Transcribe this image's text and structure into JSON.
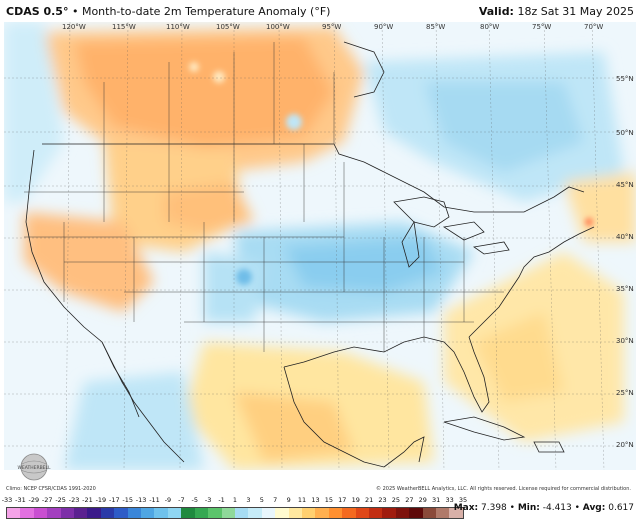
{
  "header": {
    "model": "CDAS 0.5°",
    "separator": " • ",
    "product": "Month-to-date 2m Temperature Anomaly (°F)",
    "valid_label": "Valid:",
    "valid_time": "18z Sat 31 May 2025"
  },
  "map": {
    "lon_labels": [
      "120°W",
      "115°W",
      "110°W",
      "105°W",
      "100°W",
      "95°W",
      "90°W",
      "85°W",
      "80°W",
      "75°W",
      "70°W"
    ],
    "lat_labels": [
      "55°N",
      "50°N",
      "45°N",
      "40°N",
      "35°N",
      "30°N",
      "25°N",
      "20°N"
    ]
  },
  "footer": {
    "climo": "Climo: NCEP CFSR/CDAS 1991-2020",
    "copyright": "© 2025 WeatherBELL Analytics, LLC. All rights reserved. License required for commercial distribution.",
    "logo_text": "WEATHERBELL",
    "max_label": "Max:",
    "max_value": "7.398",
    "min_label": "Min:",
    "min_value": "-4.413",
    "avg_label": "Avg:",
    "avg_value": "0.617",
    "sep": " • "
  },
  "colorbar": {
    "ticks": [
      "-33",
      "-31",
      "-29",
      "-27",
      "-25",
      "-23",
      "-21",
      "-19",
      "-17",
      "-15",
      "-13",
      "-11",
      "-9",
      "-7",
      "-5",
      "-3",
      "-1",
      "1",
      "3",
      "5",
      "7",
      "9",
      "11",
      "13",
      "15",
      "17",
      "19",
      "21",
      "23",
      "25",
      "27",
      "29",
      "31",
      "33",
      "35"
    ],
    "colors": [
      "#f5a3e8",
      "#e270e0",
      "#c94fd1",
      "#a33fbf",
      "#7d2fa8",
      "#5b2190",
      "#3b1a8a",
      "#2b3aa8",
      "#2e5cc7",
      "#3a86d9",
      "#4fa6e3",
      "#6fc2ec",
      "#8fd6f2",
      "#1f8a3f",
      "#35a852",
      "#5bc46b",
      "#8fd99a",
      "#a6dcf2",
      "#c6ecf8",
      "#e8f6fc",
      "#fffbd0",
      "#ffe8a0",
      "#ffd070",
      "#ffb050",
      "#ff9030",
      "#f46a20",
      "#e04818",
      "#c22e12",
      "#a01c0e",
      "#7e120c",
      "#5e0a0a",
      "#8a4a3a",
      "#b07a6a",
      "#d8b0a8"
    ]
  }
}
